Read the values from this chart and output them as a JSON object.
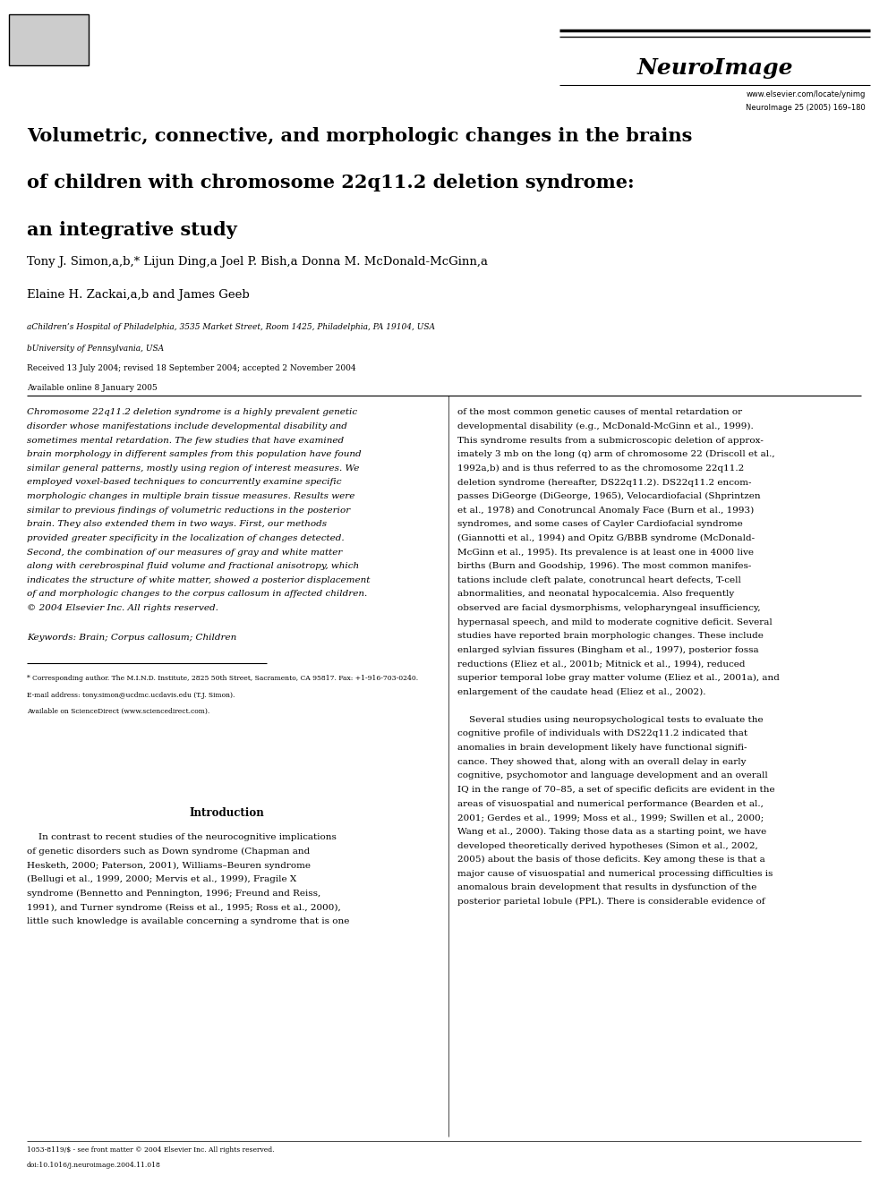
{
  "journal_name": "NeuroImage",
  "journal_url": "www.elsevier.com/locate/ynimg",
  "journal_citation": "NeuroImage 25 (2005) 169–180",
  "title_line1": "Volumetric, connective, and morphologic changes in the brains",
  "title_line2": "of children with chromosome 22q11.2 deletion syndrome:",
  "title_line3": "an integrative study",
  "authors1": "Tony J. Simon,a,b,* Lijun Ding,a Joel P. Bish,a Donna M. McDonald-McGinn,a",
  "authors2": "Elaine H. Zackai,a,b and James Geeb",
  "affil1": "aChildren’s Hospital of Philadelphia, 3535 Market Street, Room 1425, Philadelphia, PA 19104, USA",
  "affil2": "bUniversity of Pennsylvania, USA",
  "dates": "Received 13 July 2004; revised 18 September 2004; accepted 2 November 2004",
  "online": "Available online 8 January 2005",
  "abstract_lines": [
    "Chromosome 22q11.2 deletion syndrome is a highly prevalent genetic",
    "disorder whose manifestations include developmental disability and",
    "sometimes mental retardation. The few studies that have examined",
    "brain morphology in different samples from this population have found",
    "similar general patterns, mostly using region of interest measures. We",
    "employed voxel-based techniques to concurrently examine specific",
    "morphologic changes in multiple brain tissue measures. Results were",
    "similar to previous findings of volumetric reductions in the posterior",
    "brain. They also extended them in two ways. First, our methods",
    "provided greater specificity in the localization of changes detected.",
    "Second, the combination of our measures of gray and white matter",
    "along with cerebrospinal fluid volume and fractional anisotropy, which",
    "indicates the structure of white matter, showed a posterior displacement",
    "of and morphologic changes to the corpus callosum in affected children.",
    "© 2004 Elsevier Inc. All rights reserved."
  ],
  "keywords": "Keywords: Brain; Corpus callosum; Children",
  "intro_title": "Introduction",
  "intro_lines": [
    "    In contrast to recent studies of the neurocognitive implications",
    "of genetic disorders such as Down syndrome (Chapman and",
    "Hesketh, 2000; Paterson, 2001), Williams–Beuren syndrome",
    "(Bellugi et al., 1999, 2000; Mervis et al., 1999), Fragile X",
    "syndrome (Bennetto and Pennington, 1996; Freund and Reiss,",
    "1991), and Turner syndrome (Reiss et al., 1995; Ross et al., 2000),",
    "little such knowledge is available concerning a syndrome that is one"
  ],
  "right_col_lines": [
    "of the most common genetic causes of mental retardation or",
    "developmental disability (e.g., McDonald-McGinn et al., 1999).",
    "This syndrome results from a submicroscopic deletion of approx-",
    "imately 3 mb on the long (q) arm of chromosome 22 (Driscoll et al.,",
    "1992a,b) and is thus referred to as the chromosome 22q11.2",
    "deletion syndrome (hereafter, DS22q11.2). DS22q11.2 encom-",
    "passes DiGeorge (DiGeorge, 1965), Velocardiofacial (Shprintzen",
    "et al., 1978) and Conotruncal Anomaly Face (Burn et al., 1993)",
    "syndromes, and some cases of Cayler Cardiofacial syndrome",
    "(Giannotti et al., 1994) and Opitz G/BBB syndrome (McDonald-",
    "McGinn et al., 1995). Its prevalence is at least one in 4000 live",
    "births (Burn and Goodship, 1996). The most common manifes-",
    "tations include cleft palate, conotruncal heart defects, T-cell",
    "abnormalities, and neonatal hypocalcemia. Also frequently",
    "observed are facial dysmorphisms, velopharyngeal insufficiency,",
    "hypernasal speech, and mild to moderate cognitive deficit. Several",
    "studies have reported brain morphologic changes. These include",
    "enlarged sylvian fissures (Bingham et al., 1997), posterior fossa",
    "reductions (Eliez et al., 2001b; Mitnick et al., 1994), reduced",
    "superior temporal lobe gray matter volume (Eliez et al., 2001a), and",
    "enlargement of the caudate head (Eliez et al., 2002).",
    "",
    "    Several studies using neuropsychological tests to evaluate the",
    "cognitive profile of individuals with DS22q11.2 indicated that",
    "anomalies in brain development likely have functional signifi-",
    "cance. They showed that, along with an overall delay in early",
    "cognitive, psychomotor and language development and an overall",
    "IQ in the range of 70–85, a set of specific deficits are evident in the",
    "areas of visuospatial and numerical performance (Bearden et al.,",
    "2001; Gerdes et al., 1999; Moss et al., 1999; Swillen et al., 2000;",
    "Wang et al., 2000). Taking those data as a starting point, we have",
    "developed theoretically derived hypotheses (Simon et al., 2002,",
    "2005) about the basis of those deficits. Key among these is that a",
    "major cause of visuospatial and numerical processing difficulties is",
    "anomalous brain development that results in dysfunction of the",
    "posterior parietal lobule (PPL). There is considerable evidence of"
  ],
  "footnote_star": "* Corresponding author. The M.I.N.D. Institute, 2825 50th Street, Sacramento, CA 95817. Fax: +1-916-703-0240.",
  "footnote_email": "E-mail address: tony.simon@ucdmc.ucdavis.edu (T.J. Simon).",
  "footnote_url": "Available on ScienceDirect (www.sciencedirect.com).",
  "footer1": "1053-8119/$ - see front matter © 2004 Elsevier Inc. All rights reserved.",
  "footer2": "doi:10.1016/j.neuroimage.2004.11.018",
  "bg_color": "#ffffff",
  "text_color": "#000000",
  "title_fontsize": 15,
  "body_fontsize": 7.5,
  "small_fontsize": 6.5,
  "journal_fontsize": 18
}
